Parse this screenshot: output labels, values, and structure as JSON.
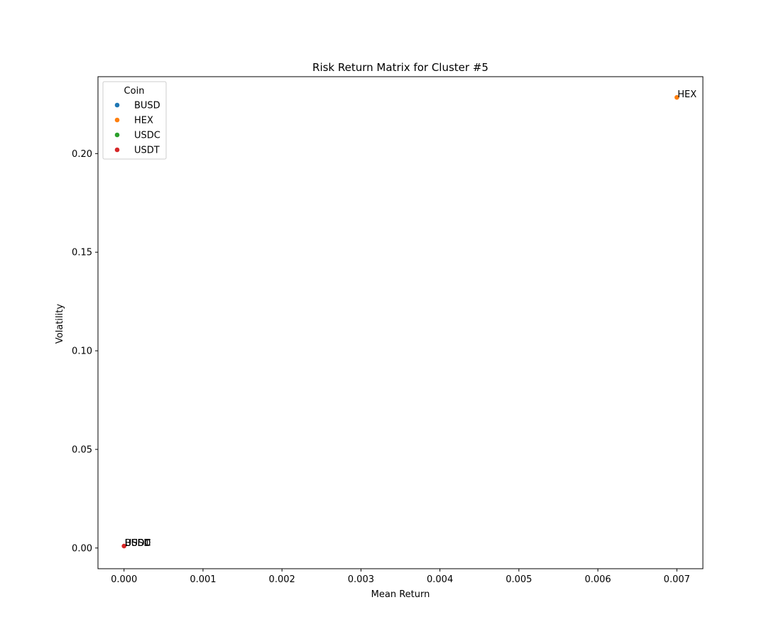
{
  "chart_data": {
    "type": "scatter",
    "title": "Risk Return Matrix for Cluster #5",
    "xlabel": "Mean Return",
    "ylabel": "Volatility",
    "xlim": [
      -0.00033,
      0.00733
    ],
    "ylim": [
      -0.0105,
      0.239
    ],
    "xticks": [
      0.0,
      0.001,
      0.002,
      0.003,
      0.004,
      0.005,
      0.006,
      0.007
    ],
    "xtick_labels": [
      "0.000",
      "0.001",
      "0.002",
      "0.003",
      "0.004",
      "0.005",
      "0.006",
      "0.007"
    ],
    "yticks": [
      0.0,
      0.05,
      0.1,
      0.15,
      0.2
    ],
    "ytick_labels": [
      "0.00",
      "0.05",
      "0.10",
      "0.15",
      "0.20"
    ],
    "grid": false,
    "legend": {
      "title": "Coin",
      "position": "top-left",
      "entries": [
        "BUSD",
        "HEX",
        "USDC",
        "USDT"
      ]
    },
    "series": [
      {
        "name": "BUSD",
        "color": "#1f77b4",
        "x": 0.0,
        "y": 0.001,
        "label": "BUSD"
      },
      {
        "name": "HEX",
        "color": "#ff7f0e",
        "x": 0.007,
        "y": 0.2285,
        "label": "HEX"
      },
      {
        "name": "USDC",
        "color": "#2ca02c",
        "x": 0.0,
        "y": 0.001,
        "label": "USDC"
      },
      {
        "name": "USDT",
        "color": "#d62728",
        "x": 0.0,
        "y": 0.001,
        "label": "USDT"
      }
    ]
  }
}
